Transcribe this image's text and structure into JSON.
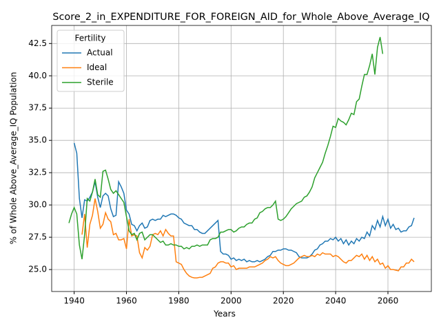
{
  "chart_data": {
    "type": "line",
    "title": "Score_2_in_EXPENDITURE_FOR_FOREIGN_AID_for_Whole_Above_Average_IQ",
    "xlabel": "Years",
    "ylabel": "% of Whole Above_Average_IQ Population",
    "legend_title": "Fertility",
    "legend": "upper left",
    "grid": true,
    "xlim": [
      1931.4,
      2076.6
    ],
    "xticks": [
      1940,
      1960,
      1980,
      2000,
      2020,
      2040,
      2060
    ],
    "ylim": [
      23.3,
      43.9
    ],
    "yticks": [
      {
        "value": 25,
        "label": "25.0"
      },
      27.5,
      {
        "value": 30,
        "label": "30.0"
      },
      32.5,
      {
        "value": 35,
        "label": "35.0"
      },
      37.5,
      {
        "value": 40,
        "label": "40.0"
      },
      42.5
    ],
    "x": [
      1938,
      1939,
      1940,
      1941,
      1942,
      1943,
      1944,
      1945,
      1946,
      1947,
      1948,
      1949,
      1950,
      1951,
      1952,
      1953,
      1954,
      1955,
      1956,
      1957,
      1958,
      1959,
      1960,
      1961,
      1962,
      1963,
      1964,
      1965,
      1966,
      1967,
      1968,
      1969,
      1970,
      1971,
      1972,
      1973,
      1974,
      1975,
      1976,
      1977,
      1978,
      1979,
      1980,
      1981,
      1982,
      1983,
      1984,
      1985,
      1986,
      1987,
      1988,
      1989,
      1990,
      1991,
      1992,
      1993,
      1994,
      1995,
      1996,
      1997,
      1998,
      1999,
      2000,
      2001,
      2002,
      2003,
      2004,
      2005,
      2006,
      2007,
      2008,
      2009,
      2010,
      2011,
      2012,
      2013,
      2014,
      2015,
      2016,
      2017,
      2018,
      2019,
      2020,
      2021,
      2022,
      2023,
      2024,
      2025,
      2026,
      2027,
      2028,
      2029,
      2030,
      2031,
      2032,
      2033,
      2034,
      2035,
      2036,
      2037,
      2038,
      2039,
      2040,
      2041,
      2042,
      2043,
      2044,
      2045,
      2046,
      2047,
      2048,
      2049,
      2050,
      2051,
      2052,
      2053,
      2054,
      2055,
      2056,
      2057,
      2058,
      2059,
      2060,
      2061,
      2062,
      2063,
      2064,
      2065,
      2066,
      2067,
      2068,
      2069,
      2070
    ],
    "series": [
      {
        "name": "Actual",
        "color": "#1f77b4",
        "values": [
          null,
          null,
          34.8,
          34.0,
          30.5,
          29.0,
          30.4,
          30.3,
          30.6,
          31.0,
          31.8,
          30.6,
          29.8,
          30.7,
          30.9,
          30.7,
          29.7,
          29.1,
          29.2,
          31.8,
          31.4,
          30.9,
          29.6,
          29.3,
          28.5,
          28.4,
          28.0,
          28.4,
          28.6,
          28.2,
          28.3,
          28.8,
          28.9,
          28.8,
          28.9,
          28.9,
          29.2,
          29.1,
          29.2,
          29.3,
          29.3,
          29.2,
          29.0,
          28.9,
          28.6,
          28.5,
          28.4,
          28.4,
          28.1,
          28.1,
          27.9,
          27.8,
          27.8,
          28.0,
          28.2,
          28.4,
          28.6,
          28.8,
          26.4,
          26.2,
          26.2,
          26.1,
          25.8,
          25.9,
          25.7,
          25.8,
          25.7,
          25.8,
          25.6,
          25.7,
          25.6,
          25.6,
          25.7,
          25.6,
          25.7,
          25.8,
          26.0,
          26.1,
          26.4,
          26.4,
          26.5,
          26.5,
          26.6,
          26.6,
          26.5,
          26.5,
          26.4,
          26.3,
          26.0,
          25.9,
          25.9,
          25.9,
          26.0,
          26.2,
          26.5,
          26.6,
          26.9,
          27.0,
          27.2,
          27.2,
          27.4,
          27.3,
          27.5,
          27.2,
          27.4,
          27.0,
          27.3,
          26.9,
          27.2,
          27.0,
          27.4,
          27.2,
          27.5,
          27.4,
          27.9,
          27.6,
          28.4,
          28.1,
          28.8,
          28.3,
          29.1,
          28.4,
          28.9,
          28.2,
          28.5,
          28.1,
          28.2,
          27.9,
          28.0,
          28.0,
          28.3,
          28.4,
          29.0
        ]
      },
      {
        "name": "Ideal",
        "color": "#ff7f0e",
        "values": [
          null,
          null,
          null,
          null,
          null,
          27.7,
          29.3,
          26.7,
          28.5,
          29.2,
          30.5,
          29.5,
          28.2,
          28.5,
          29.4,
          28.9,
          28.7,
          27.7,
          27.8,
          27.3,
          27.3,
          27.4,
          26.6,
          28.9,
          27.6,
          27.7,
          27.6,
          26.3,
          25.9,
          26.7,
          26.5,
          26.8,
          27.7,
          27.8,
          27.7,
          28.0,
          27.6,
          28.1,
          27.8,
          27.6,
          27.6,
          25.6,
          25.5,
          25.4,
          25.0,
          24.7,
          24.5,
          24.4,
          24.35,
          24.35,
          24.4,
          24.4,
          24.5,
          24.6,
          24.7,
          25.1,
          25.2,
          25.5,
          25.6,
          25.6,
          25.5,
          25.5,
          25.2,
          25.3,
          25.0,
          25.1,
          25.1,
          25.1,
          25.1,
          25.2,
          25.2,
          25.2,
          25.3,
          25.4,
          25.5,
          25.7,
          25.8,
          26.0,
          25.9,
          26.0,
          25.7,
          25.5,
          25.4,
          25.3,
          25.3,
          25.4,
          25.5,
          25.7,
          25.9,
          26.0,
          26.1,
          26.0,
          26.0,
          26.1,
          26.0,
          26.2,
          26.1,
          26.3,
          26.2,
          26.2,
          26.2,
          26.0,
          26.1,
          26.0,
          25.8,
          25.6,
          25.5,
          25.7,
          25.7,
          25.9,
          26.1,
          26.0,
          26.2,
          25.8,
          26.1,
          25.7,
          26.0,
          25.6,
          25.8,
          25.4,
          25.5,
          25.1,
          25.3,
          25.0,
          25.0,
          24.95,
          24.9,
          25.2,
          25.2,
          25.5,
          25.5,
          25.8,
          25.6
        ]
      },
      {
        "name": "Sterile",
        "color": "#2ca02c",
        "values": [
          28.6,
          29.3,
          29.8,
          29.3,
          26.9,
          25.8,
          27.7,
          30.5,
          30.3,
          31.0,
          32.0,
          30.8,
          30.6,
          32.6,
          32.7,
          32.0,
          31.2,
          30.9,
          31.1,
          30.8,
          30.5,
          30.2,
          29.1,
          28.0,
          27.7,
          27.8,
          27.3,
          27.8,
          27.9,
          27.3,
          27.5,
          27.7,
          27.7,
          27.5,
          27.3,
          27.1,
          27.2,
          26.9,
          26.9,
          27.0,
          26.9,
          26.9,
          26.8,
          26.8,
          26.6,
          26.7,
          26.6,
          26.8,
          26.8,
          26.9,
          26.8,
          26.9,
          26.9,
          26.9,
          27.3,
          27.4,
          27.4,
          27.5,
          27.9,
          27.9,
          28.0,
          28.1,
          28.1,
          27.9,
          28.0,
          28.2,
          28.3,
          28.3,
          28.5,
          28.6,
          28.6,
          28.9,
          29.0,
          29.4,
          29.5,
          29.7,
          29.8,
          29.8,
          30.0,
          30.3,
          28.9,
          28.8,
          28.9,
          29.1,
          29.4,
          29.7,
          29.9,
          30.1,
          30.2,
          30.3,
          30.6,
          30.7,
          31.0,
          31.4,
          32.1,
          32.5,
          32.9,
          33.3,
          34.0,
          34.6,
          35.3,
          36.1,
          36.0,
          36.7,
          36.5,
          36.4,
          36.2,
          36.6,
          37.1,
          37.0,
          38.0,
          38.2,
          39.2,
          40.1,
          40.1,
          40.8,
          41.7,
          40.1,
          42.2,
          43.0,
          41.7,
          null,
          null,
          null,
          null,
          null,
          null,
          null,
          null,
          null,
          null,
          null,
          null
        ]
      }
    ]
  }
}
